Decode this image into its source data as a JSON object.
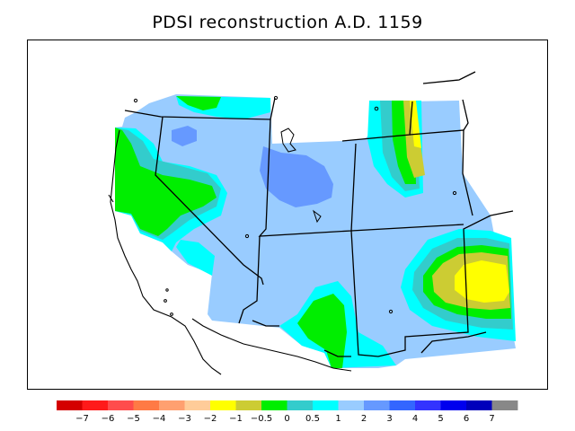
{
  "title": "PDSI reconstruction A.D. 1159",
  "legend": {
    "colors": [
      "#d40000",
      "#ff1a1a",
      "#ff4c4c",
      "#ff7a45",
      "#ffa070",
      "#ffcc99",
      "#ffff00",
      "#cccc33",
      "#00ee00",
      "#33cccc",
      "#00ffff",
      "#99ccff",
      "#6699ff",
      "#3366ff",
      "#3333ff",
      "#0000ee",
      "#0000bb",
      "#888888"
    ],
    "labels": [
      "−7",
      "−6",
      "−5",
      "−4",
      "−3",
      "−2",
      "−1",
      "−0.5",
      "0",
      "0.5",
      "1",
      "2",
      "3",
      "4",
      "5",
      "6",
      "7"
    ]
  },
  "palette": {
    "pdsi_2": "#99ccff",
    "pdsi_3": "#6699ff",
    "pdsi_1": "#00ffff",
    "pdsi_0_5": "#33cccc",
    "pdsi_0": "#00ee00",
    "pdsi_neg0_5": "#cccc33",
    "pdsi_neg1": "#ffff00"
  }
}
